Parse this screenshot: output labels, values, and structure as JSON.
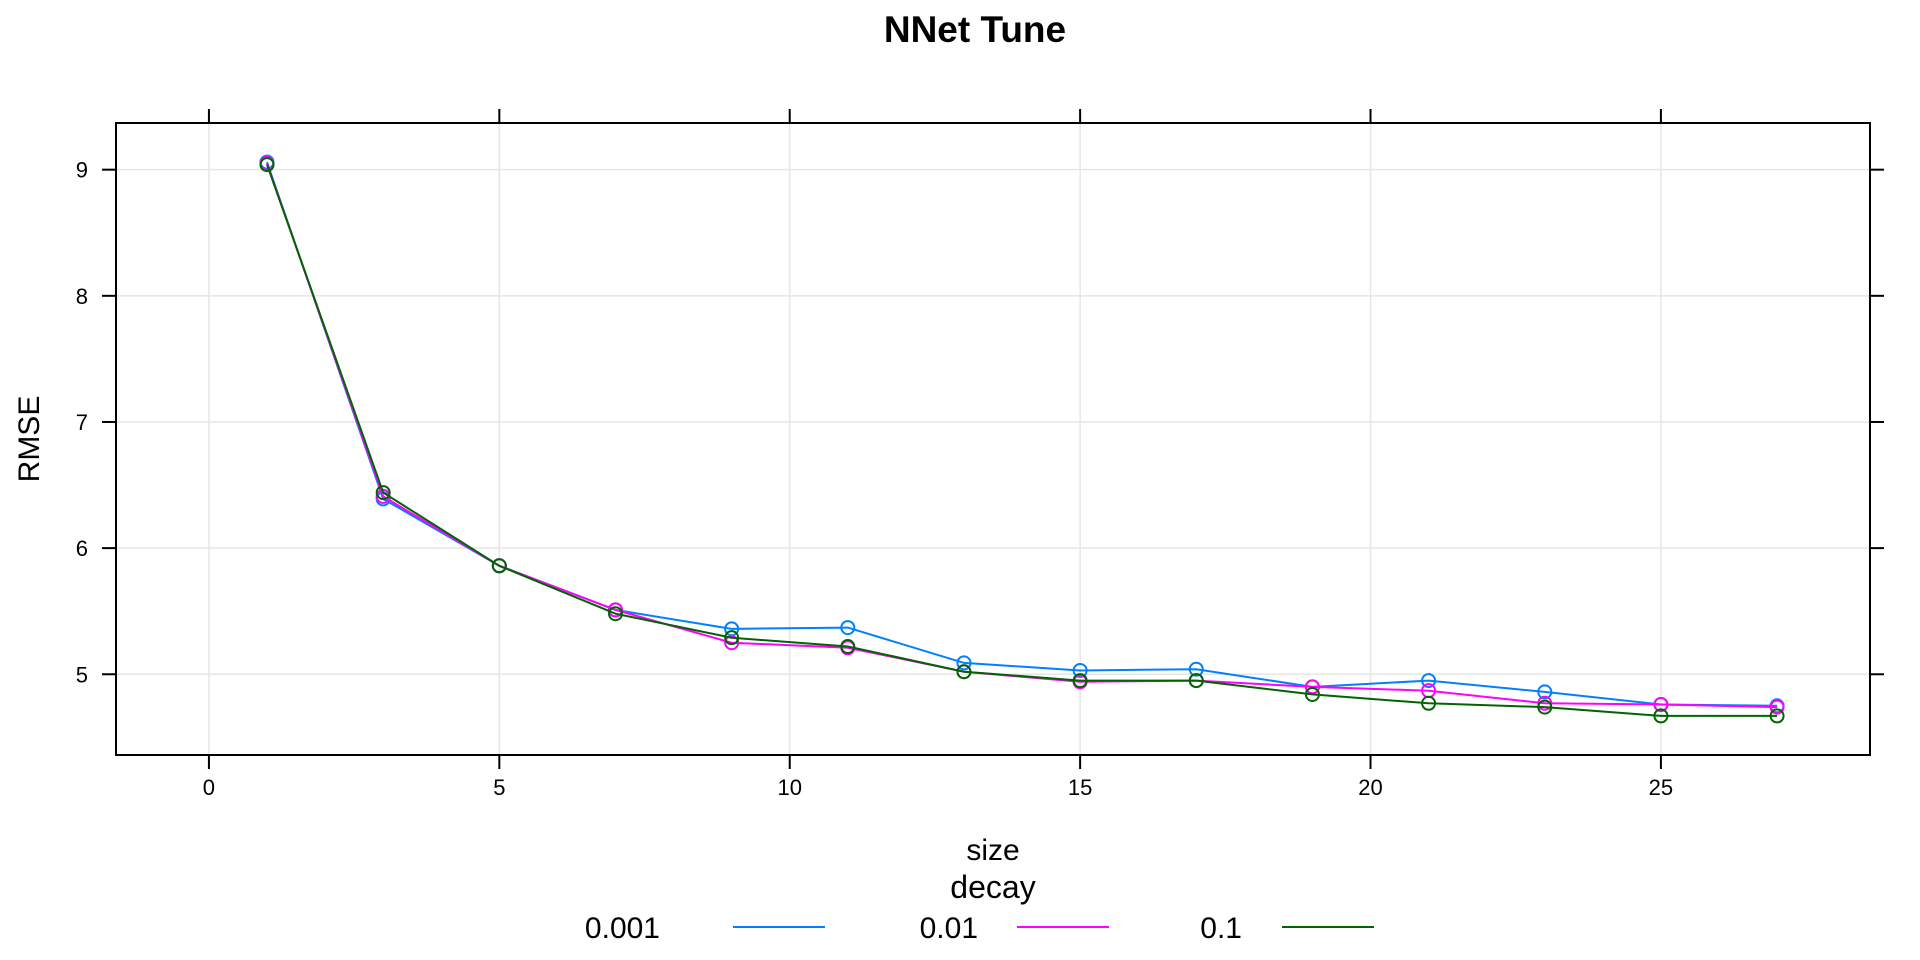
{
  "chart_data": {
    "type": "line",
    "title": "NNet Tune",
    "xlabel": "size",
    "ylabel": "RMSE",
    "xlim": [
      -1.6,
      28.6
    ],
    "ylim": [
      4.36,
      9.37
    ],
    "xticks": [
      0,
      5,
      10,
      15,
      20,
      25
    ],
    "xtick_labels": [
      "0",
      "5",
      "10",
      "15",
      "20",
      "25"
    ],
    "yticks": [
      5,
      6,
      7,
      8,
      9
    ],
    "ytick_labels": [
      "5",
      "6",
      "7",
      "8",
      "9"
    ],
    "grid": true,
    "legend": {
      "title": "decay",
      "placement": "bottom"
    },
    "x": [
      1,
      3,
      5,
      7,
      9,
      11,
      13,
      15,
      17,
      19,
      21,
      23,
      25,
      27
    ],
    "series": [
      {
        "name": "0.001",
        "color": "#0080ff",
        "values": [
          9.06,
          6.39,
          5.86,
          5.51,
          5.36,
          5.37,
          5.09,
          5.03,
          5.04,
          4.9,
          4.95,
          4.86,
          4.76,
          4.75
        ]
      },
      {
        "name": "0.01",
        "color": "#ff00ff",
        "values": [
          9.05,
          6.41,
          5.86,
          5.51,
          5.25,
          5.21,
          5.02,
          4.94,
          4.95,
          4.9,
          4.87,
          4.77,
          4.76,
          4.74
        ]
      },
      {
        "name": "0.1",
        "color": "#006400",
        "values": [
          9.04,
          6.44,
          5.86,
          5.48,
          5.29,
          5.22,
          5.02,
          4.95,
          4.95,
          4.84,
          4.77,
          4.74,
          4.67,
          4.67
        ]
      }
    ]
  }
}
